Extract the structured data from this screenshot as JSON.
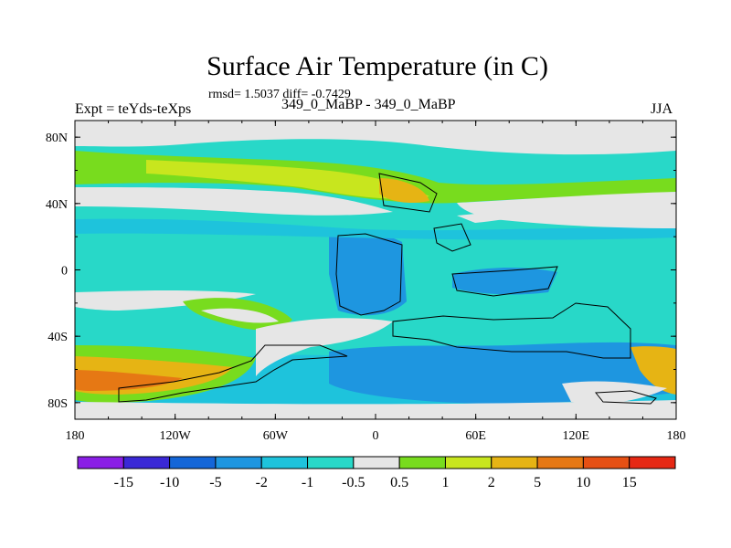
{
  "chart_data": {
    "type": "heatmap",
    "title": "Surface Air Temperature (in C)",
    "stats_text": "rmsd= 1.5037 diff= -0.7429",
    "left_label": "Expt = teYds-teXps",
    "center_label": "349_0_MaBP - 349_0_MaBP",
    "right_label": "JJA",
    "x_ticks": [
      "180",
      "120W",
      "60W",
      "0",
      "60E",
      "120E",
      "180"
    ],
    "y_ticks": [
      "80N",
      "40N",
      "0",
      "40S",
      "80S"
    ],
    "xlim": [
      -180,
      180
    ],
    "ylim": [
      -90,
      90
    ],
    "colorbar": {
      "labels": [
        "-15",
        "-10",
        "-5",
        "-2",
        "-1",
        "-0.5",
        "0.5",
        "1",
        "2",
        "5",
        "10",
        "15"
      ],
      "colors": [
        "#8a1ee6",
        "#3a28d6",
        "#1466d8",
        "#1e96e0",
        "#1ec3dc",
        "#28d8c8",
        "#e6e6e6",
        "#78dc1e",
        "#c8e61e",
        "#e6b414",
        "#e67814",
        "#e65014",
        "#e62814"
      ]
    }
  }
}
